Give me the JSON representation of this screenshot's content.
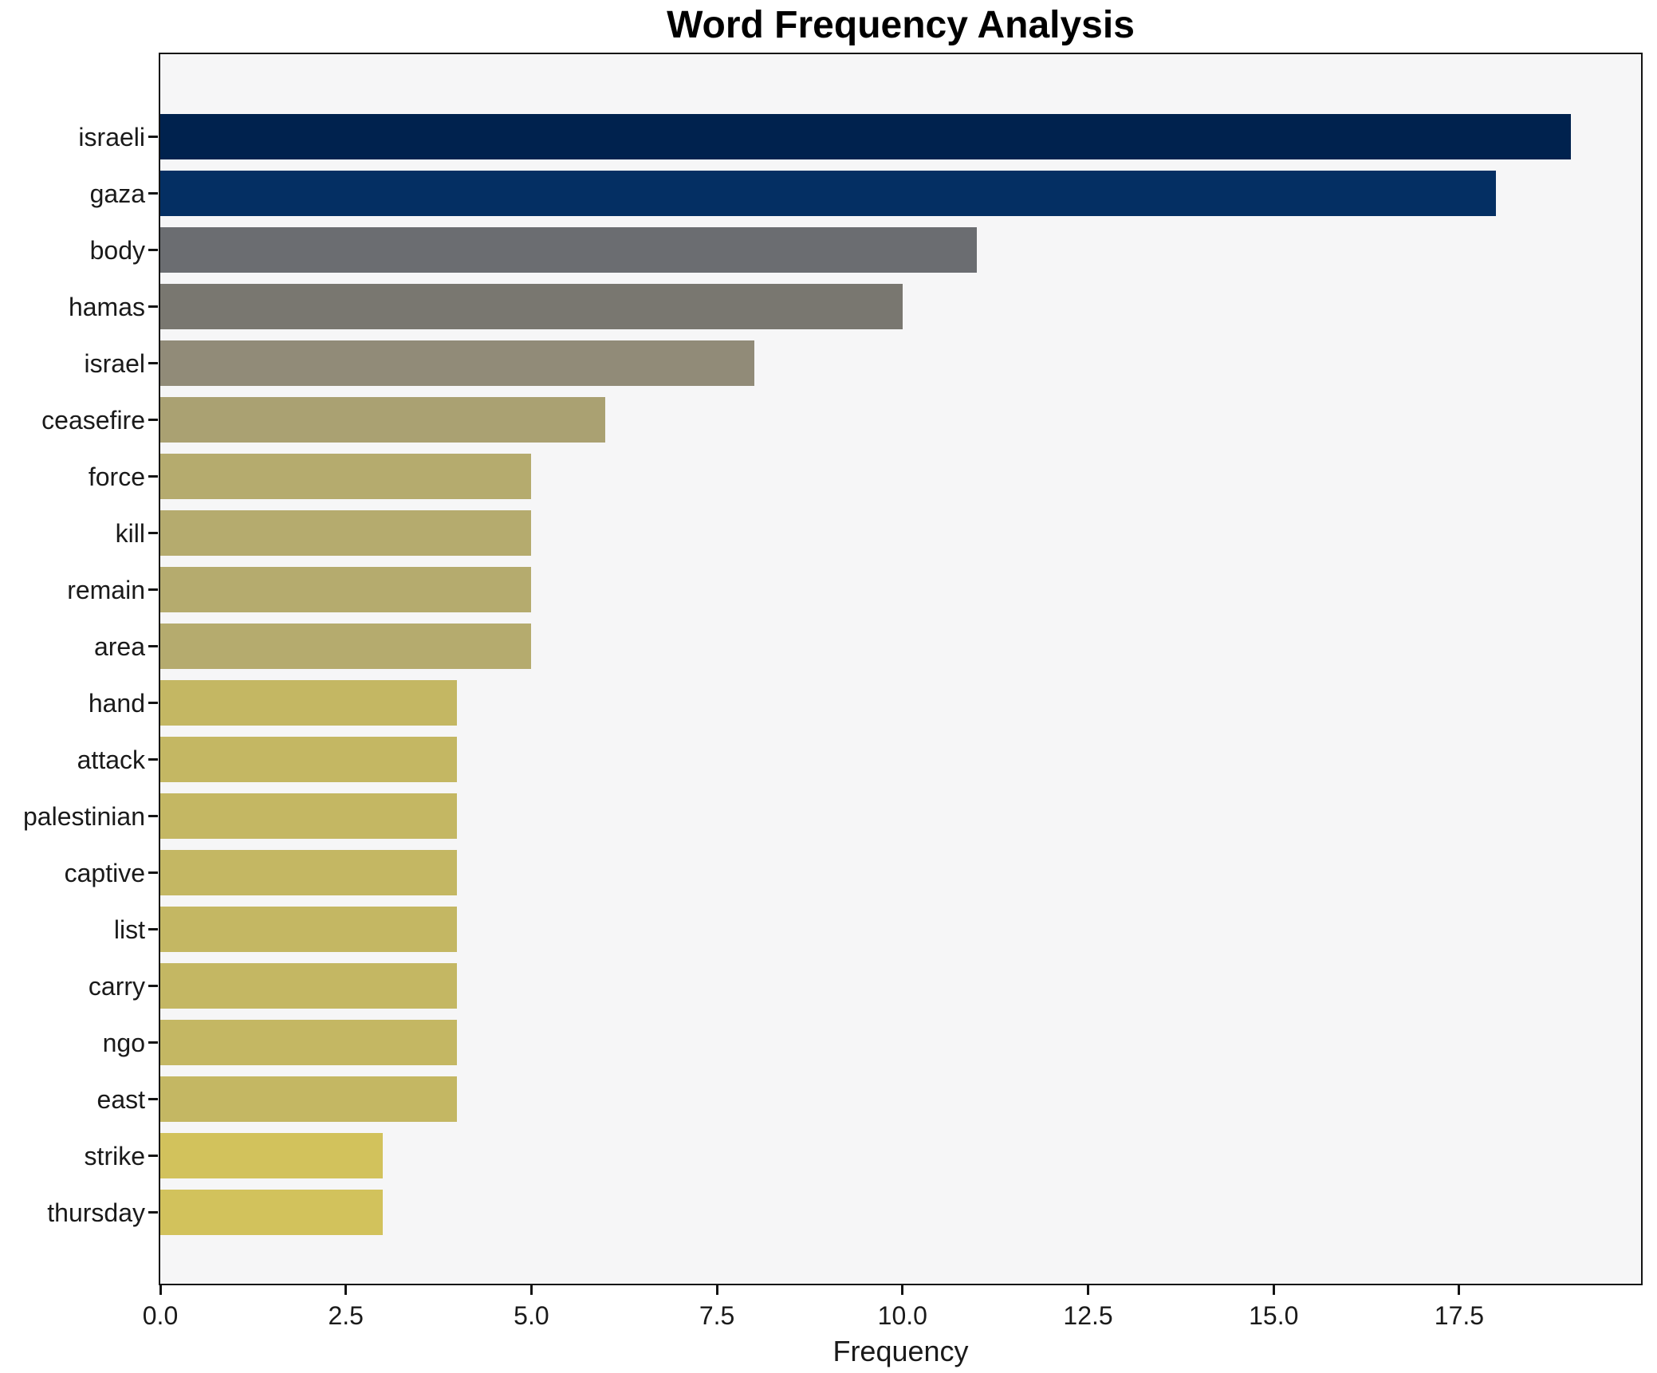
{
  "chart_data": {
    "type": "bar",
    "orientation": "horizontal",
    "title": "Word Frequency Analysis",
    "xlabel": "Frequency",
    "ylabel": "",
    "categories": [
      "israeli",
      "gaza",
      "body",
      "hamas",
      "israel",
      "ceasefire",
      "force",
      "kill",
      "remain",
      "area",
      "hand",
      "attack",
      "palestinian",
      "captive",
      "list",
      "carry",
      "ngo",
      "east",
      "strike",
      "thursday"
    ],
    "values": [
      19,
      18,
      11,
      10,
      8,
      6,
      5,
      5,
      5,
      5,
      4,
      4,
      4,
      4,
      4,
      4,
      4,
      4,
      3,
      3
    ],
    "bar_colors": [
      "#00224e",
      "#042f63",
      "#6b6d71",
      "#797770",
      "#918b78",
      "#aaa172",
      "#b5ab6e",
      "#b5ab6e",
      "#b5ab6e",
      "#b5ab6e",
      "#c4b763",
      "#c4b763",
      "#c4b763",
      "#c4b763",
      "#c4b763",
      "#c4b763",
      "#c4b763",
      "#c4b763",
      "#d2c25c",
      "#d2c25c"
    ],
    "xlim": [
      0,
      19.95
    ],
    "xticks": [
      0.0,
      2.5,
      5.0,
      7.5,
      10.0,
      12.5,
      15.0,
      17.5
    ],
    "xtick_labels": [
      "0.0",
      "2.5",
      "5.0",
      "7.5",
      "10.0",
      "12.5",
      "15.0",
      "17.5"
    ],
    "grid": false,
    "legend": "none",
    "plot_background": "#f6f6f7",
    "figure_background": "#ffffff",
    "spine_color": "#141414"
  }
}
